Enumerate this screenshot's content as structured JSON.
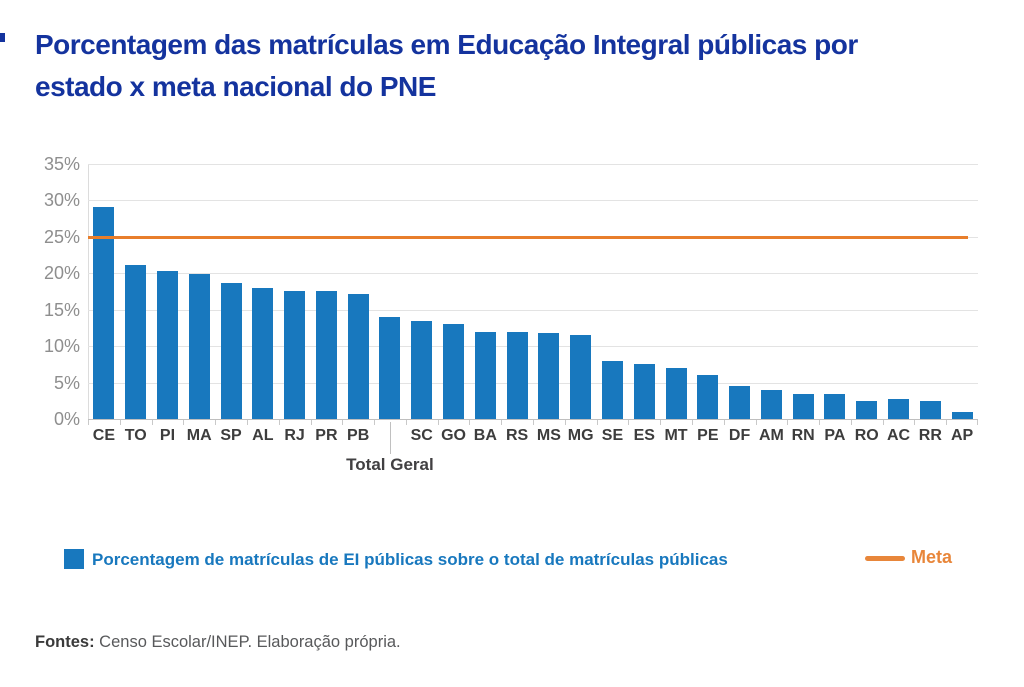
{
  "title": {
    "line1": "Porcentagem das matrículas em Educação Integral públicas por",
    "line2": "estado x meta nacional do PNE"
  },
  "chart_data": {
    "type": "bar",
    "title": "Porcentagem das matrículas em Educação Integral públicas por estado x meta nacional do PNE",
    "xlabel": "",
    "ylabel": "",
    "ylim": [
      0,
      35
    ],
    "y_tick_step": 5,
    "y_tick_suffix": "%",
    "grid": "horizontal",
    "legend_position": "bottom",
    "categories": [
      "CE",
      "TO",
      "PI",
      "MA",
      "SP",
      "AL",
      "RJ",
      "PR",
      "PB",
      "",
      "SC",
      "GO",
      "BA",
      "RS",
      "MS",
      "MG",
      "SE",
      "ES",
      "MT",
      "PE",
      "DF",
      "AM",
      "RN",
      "PA",
      "RO",
      "AC",
      "RR",
      "AP"
    ],
    "group_label": {
      "text": "Total Geral",
      "index": 9
    },
    "series": [
      {
        "name": "Porcentagem de matrículas de EI públicas sobre o total de matrículas públicas",
        "values": [
          29.1,
          21.1,
          20.3,
          19.9,
          18.6,
          18.0,
          17.6,
          17.6,
          17.1,
          14.0,
          13.5,
          13.1,
          12.0,
          12.0,
          11.8,
          11.5,
          7.9,
          7.5,
          7.0,
          6.0,
          4.5,
          4.0,
          3.5,
          3.5,
          2.5,
          2.7,
          2.5,
          1.0
        ]
      }
    ],
    "reference_line": {
      "name": "Meta",
      "value": 25
    }
  },
  "legend": {
    "series_label": "Porcentagem de matrículas de EI públicas sobre o total de matrículas públicas",
    "meta_label": "Meta"
  },
  "footer": {
    "label": "Fontes:",
    "text": " Censo Escolar/INEP. Elaboração própria."
  },
  "colors": {
    "title": "#14339E",
    "bar": "#1878BE",
    "meta_line": "#E87E2B",
    "meta_text": "#E8863A",
    "gridline": "#E3E3E3",
    "axis_line": "#BFBFBF",
    "y_labels": "#8E8E8E",
    "x_labels": "#3D3D3D"
  }
}
